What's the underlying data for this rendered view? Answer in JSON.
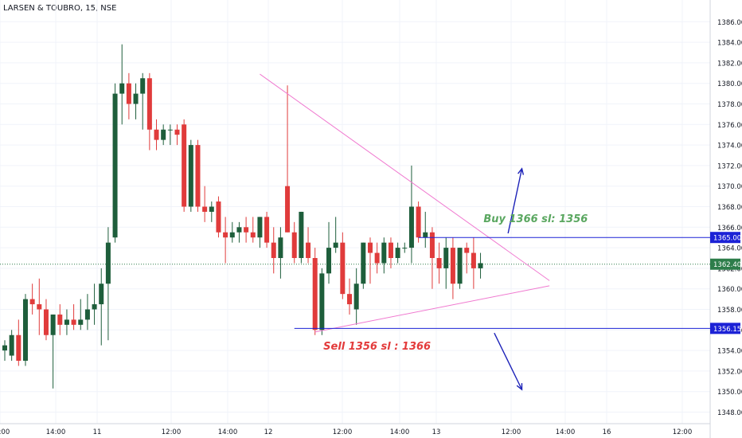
{
  "header": {
    "symbol_title": "LARSEN & TOUBRO, 15, NSE"
  },
  "colors": {
    "up": "#1e5e3b",
    "down": "#e03b3b",
    "grid": "#f0f3fa",
    "trendline": "#f07ad0",
    "level_line": "#1c22d6",
    "arrow": "#1c22b8",
    "current_price_line": "#2d7d4a",
    "buy_text": "#5aa760",
    "sell_text": "#e33b3b"
  },
  "chart_data": {
    "type": "candlestick",
    "title": "LARSEN & TOUBRO, 15, NSE",
    "ylim": [
      1347,
      1387
    ],
    "y_ticks": [
      1348,
      1350,
      1352,
      1354,
      1356,
      1358,
      1360,
      1362,
      1364,
      1366,
      1368,
      1370,
      1372,
      1374,
      1376,
      1378,
      1380,
      1382,
      1384,
      1386
    ],
    "x_tick_labels": [
      "12:00",
      "14:00",
      "11",
      "12:00",
      "14:00",
      "12",
      "12:00",
      "14:00",
      "13",
      "12:00",
      "14:00",
      "16",
      "12:00"
    ],
    "candles": [
      {
        "o": 1354.0,
        "h": 1355.0,
        "l": 1353.0,
        "c": 1354.5
      },
      {
        "o": 1353.5,
        "h": 1356.0,
        "l": 1353.0,
        "c": 1355.5
      },
      {
        "o": 1355.5,
        "h": 1357.0,
        "l": 1352.5,
        "c": 1353.0
      },
      {
        "o": 1353.0,
        "h": 1359.5,
        "l": 1352.5,
        "c": 1359.0
      },
      {
        "o": 1359.0,
        "h": 1360.5,
        "l": 1357.5,
        "c": 1358.5
      },
      {
        "o": 1358.5,
        "h": 1361.0,
        "l": 1355.5,
        "c": 1358.0
      },
      {
        "o": 1358.0,
        "h": 1359.0,
        "l": 1355.0,
        "c": 1355.5
      },
      {
        "o": 1355.5,
        "h": 1357.5,
        "l": 1350.3,
        "c": 1357.5
      },
      {
        "o": 1357.5,
        "h": 1358.5,
        "l": 1355.5,
        "c": 1356.5
      },
      {
        "o": 1356.5,
        "h": 1358.0,
        "l": 1355.5,
        "c": 1357.0
      },
      {
        "o": 1357.0,
        "h": 1358.5,
        "l": 1356.0,
        "c": 1356.5
      },
      {
        "o": 1356.5,
        "h": 1359.0,
        "l": 1356.0,
        "c": 1357.0
      },
      {
        "o": 1357.0,
        "h": 1359.5,
        "l": 1356.0,
        "c": 1358.0
      },
      {
        "o": 1358.0,
        "h": 1360.5,
        "l": 1356.5,
        "c": 1358.5
      },
      {
        "o": 1358.5,
        "h": 1362.0,
        "l": 1354.5,
        "c": 1360.5
      },
      {
        "o": 1360.5,
        "h": 1366.0,
        "l": 1355.0,
        "c": 1364.5
      },
      {
        "o": 1365.0,
        "h": 1380.0,
        "l": 1364.5,
        "c": 1379.0
      },
      {
        "o": 1379.0,
        "h": 1383.8,
        "l": 1376.0,
        "c": 1380.0
      },
      {
        "o": 1380.0,
        "h": 1381.0,
        "l": 1376.5,
        "c": 1378.0
      },
      {
        "o": 1378.0,
        "h": 1380.0,
        "l": 1376.5,
        "c": 1379.0
      },
      {
        "o": 1379.0,
        "h": 1381.0,
        "l": 1375.5,
        "c": 1380.5
      },
      {
        "o": 1380.5,
        "h": 1381.0,
        "l": 1373.5,
        "c": 1375.5
      },
      {
        "o": 1375.5,
        "h": 1376.5,
        "l": 1373.5,
        "c": 1374.5
      },
      {
        "o": 1374.5,
        "h": 1376.0,
        "l": 1374.0,
        "c": 1375.5
      },
      {
        "o": 1375.5,
        "h": 1376.0,
        "l": 1374.0,
        "c": 1375.5
      },
      {
        "o": 1375.5,
        "h": 1376.0,
        "l": 1374.0,
        "c": 1375.0
      },
      {
        "o": 1376.0,
        "h": 1376.5,
        "l": 1367.5,
        "c": 1368.0
      },
      {
        "o": 1368.0,
        "h": 1374.5,
        "l": 1367.5,
        "c": 1374.0
      },
      {
        "o": 1374.0,
        "h": 1374.5,
        "l": 1367.5,
        "c": 1368.0
      },
      {
        "o": 1368.0,
        "h": 1370.0,
        "l": 1366.5,
        "c": 1367.5
      },
      {
        "o": 1367.5,
        "h": 1368.5,
        "l": 1366.5,
        "c": 1368.0
      },
      {
        "o": 1368.5,
        "h": 1369.0,
        "l": 1365.0,
        "c": 1365.5
      },
      {
        "o": 1365.5,
        "h": 1367.0,
        "l": 1362.5,
        "c": 1365.0
      },
      {
        "o": 1365.0,
        "h": 1366.5,
        "l": 1364.5,
        "c": 1365.5
      },
      {
        "o": 1365.5,
        "h": 1366.5,
        "l": 1364.5,
        "c": 1366.0
      },
      {
        "o": 1366.0,
        "h": 1367.0,
        "l": 1364.5,
        "c": 1365.5
      },
      {
        "o": 1365.5,
        "h": 1367.0,
        "l": 1364.5,
        "c": 1365.0
      },
      {
        "o": 1365.0,
        "h": 1367.0,
        "l": 1364.0,
        "c": 1367.0
      },
      {
        "o": 1367.0,
        "h": 1367.5,
        "l": 1364.0,
        "c": 1364.5
      },
      {
        "o": 1364.5,
        "h": 1366.0,
        "l": 1361.5,
        "c": 1363.0
      },
      {
        "o": 1363.0,
        "h": 1366.0,
        "l": 1361.0,
        "c": 1365.0
      },
      {
        "o": 1370.0,
        "h": 1379.8,
        "l": 1365.5,
        "c": 1365.5
      },
      {
        "o": 1365.5,
        "h": 1366.5,
        "l": 1362.5,
        "c": 1363.0
      },
      {
        "o": 1363.0,
        "h": 1367.5,
        "l": 1362.5,
        "c": 1367.5
      },
      {
        "o": 1364.5,
        "h": 1366.0,
        "l": 1362.5,
        "c": 1363.0
      },
      {
        "o": 1363.0,
        "h": 1364.0,
        "l": 1355.5,
        "c": 1356.0
      },
      {
        "o": 1356.0,
        "h": 1362.0,
        "l": 1355.5,
        "c": 1361.5
      },
      {
        "o": 1361.5,
        "h": 1366.5,
        "l": 1360.5,
        "c": 1364.0
      },
      {
        "o": 1364.0,
        "h": 1367.0,
        "l": 1363.5,
        "c": 1364.5
      },
      {
        "o": 1364.5,
        "h": 1365.5,
        "l": 1359.0,
        "c": 1359.5
      },
      {
        "o": 1359.5,
        "h": 1361.0,
        "l": 1357.5,
        "c": 1358.5
      },
      {
        "o": 1358.0,
        "h": 1362.0,
        "l": 1356.5,
        "c": 1360.5
      },
      {
        "o": 1360.5,
        "h": 1364.5,
        "l": 1360.0,
        "c": 1364.5
      },
      {
        "o": 1364.5,
        "h": 1365.0,
        "l": 1360.5,
        "c": 1363.5
      },
      {
        "o": 1363.5,
        "h": 1364.5,
        "l": 1361.5,
        "c": 1362.5
      },
      {
        "o": 1362.5,
        "h": 1365.0,
        "l": 1361.5,
        "c": 1364.5
      },
      {
        "o": 1364.5,
        "h": 1365.0,
        "l": 1362.0,
        "c": 1363.0
      },
      {
        "o": 1363.0,
        "h": 1364.5,
        "l": 1362.5,
        "c": 1364.0
      },
      {
        "o": 1364.0,
        "h": 1364.5,
        "l": 1363.5,
        "c": 1364.0
      },
      {
        "o": 1364.0,
        "h": 1372.0,
        "l": 1362.5,
        "c": 1368.0
      },
      {
        "o": 1368.0,
        "h": 1368.5,
        "l": 1364.5,
        "c": 1365.0
      },
      {
        "o": 1365.0,
        "h": 1367.5,
        "l": 1364.0,
        "c": 1365.5
      },
      {
        "o": 1365.5,
        "h": 1366.0,
        "l": 1360.0,
        "c": 1363.0
      },
      {
        "o": 1363.0,
        "h": 1364.5,
        "l": 1360.5,
        "c": 1362.0
      },
      {
        "o": 1362.0,
        "h": 1365.0,
        "l": 1360.0,
        "c": 1364.0
      },
      {
        "o": 1364.0,
        "h": 1365.0,
        "l": 1359.0,
        "c": 1360.5
      },
      {
        "o": 1360.5,
        "h": 1364.0,
        "l": 1360.0,
        "c": 1364.0
      },
      {
        "o": 1364.0,
        "h": 1364.5,
        "l": 1361.5,
        "c": 1363.5
      },
      {
        "o": 1363.5,
        "h": 1365.0,
        "l": 1360.0,
        "c": 1362.0
      },
      {
        "o": 1362.0,
        "h": 1363.5,
        "l": 1361.0,
        "c": 1362.5
      }
    ],
    "drawings": {
      "upper_trendline": {
        "from": {
          "bar": 37,
          "price": 1380.9
        },
        "to": {
          "bar": 79,
          "price": 1360.8
        }
      },
      "lower_trendline": {
        "from": {
          "bar": 45,
          "price": 1355.8
        },
        "to": {
          "bar": 79,
          "price": 1360.3
        }
      },
      "buy_line": {
        "price": 1365.0,
        "from_bar": 60
      },
      "sell_line": {
        "price": 1356.15,
        "from_bar": 42
      },
      "up_arrow": {
        "from": {
          "bar": 73,
          "price": 1365.4
        },
        "to": {
          "bar": 75,
          "price": 1371.7
        }
      },
      "down_arrow": {
        "from": {
          "bar": 71,
          "price": 1355.7
        },
        "to": {
          "bar": 75,
          "price": 1350.2
        }
      }
    },
    "current_price": 1362.4,
    "price_labels": [
      {
        "text": "1365.00",
        "price": 1365.0
      },
      {
        "text": "1362.40",
        "price": 1362.4
      },
      {
        "text": "1356.15",
        "price": 1356.15
      }
    ],
    "annotations": [
      {
        "text": "Buy 1366 sl: 1356",
        "bar": 77,
        "price": 1366.5
      },
      {
        "text": "Sell 1356 sl : 1366",
        "bar": 54,
        "price": 1354.1
      }
    ]
  }
}
